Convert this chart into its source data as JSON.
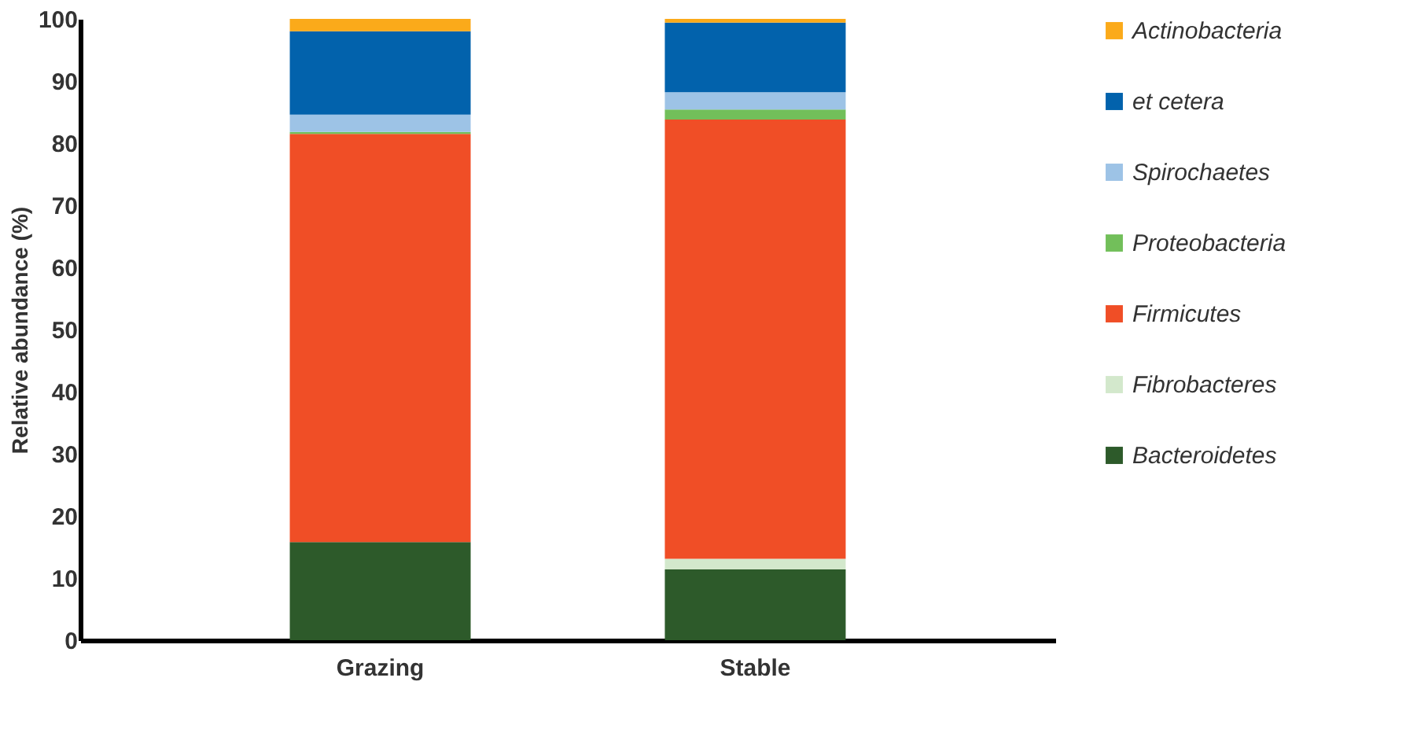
{
  "chart_data": {
    "type": "bar",
    "stacked": true,
    "ylabel": "Relative abundance (%)",
    "categories": [
      "Grazing",
      "Stable"
    ],
    "series": [
      {
        "name": "Bacteroidetes",
        "color": "#2d5a2a",
        "values": [
          15.8,
          11.4
        ]
      },
      {
        "name": "Fibrobacteres",
        "color": "#d3e8cc",
        "values": [
          0,
          1.7
        ]
      },
      {
        "name": "Firmicutes",
        "color": "#f04e26",
        "values": [
          65.7,
          70.7
        ]
      },
      {
        "name": "Proteobacteria",
        "color": "#72bf5a",
        "values": [
          0.3,
          1.6
        ]
      },
      {
        "name": "Spirochaetes",
        "color": "#9dc3e6",
        "values": [
          2.8,
          2.8
        ]
      },
      {
        "name": "et cetera",
        "color": "#0262ac",
        "values": [
          13.4,
          11.2
        ]
      },
      {
        "name": "Actinobacteria",
        "color": "#fbaa1a",
        "values": [
          2.0,
          0.6
        ]
      }
    ],
    "ylim": [
      0,
      100
    ],
    "yticks": [
      0,
      10,
      20,
      30,
      40,
      50,
      60,
      70,
      80,
      90,
      100
    ],
    "grid": false,
    "legend": "right"
  }
}
